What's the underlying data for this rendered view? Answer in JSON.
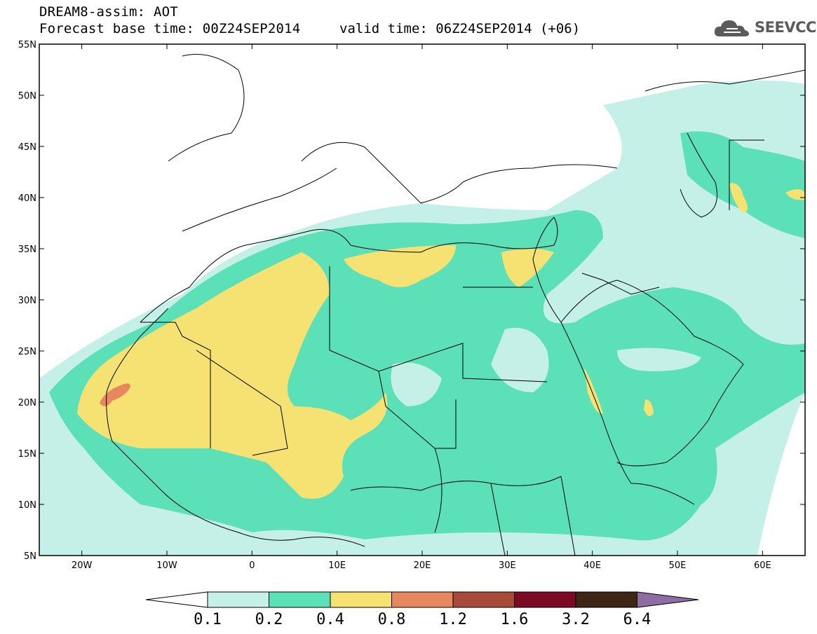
{
  "header": {
    "line1": "DREAM8-assim: AOT",
    "line2": "Forecast base time: 00Z24SEP2014",
    "line3": "valid time: 06Z24SEP2014 (+06)",
    "logo_text": "SEEVCCC",
    "logo_icon": "cloud-icon"
  },
  "map": {
    "lon_range": [
      -25,
      65
    ],
    "lat_range": [
      5,
      55
    ],
    "lat_ticks": [
      {
        "v": 55,
        "label": "55N"
      },
      {
        "v": 50,
        "label": "50N"
      },
      {
        "v": 45,
        "label": "45N"
      },
      {
        "v": 40,
        "label": "40N"
      },
      {
        "v": 35,
        "label": "35N"
      },
      {
        "v": 30,
        "label": "30N"
      },
      {
        "v": 25,
        "label": "25N"
      },
      {
        "v": 20,
        "label": "20N"
      },
      {
        "v": 15,
        "label": "15N"
      },
      {
        "v": 10,
        "label": "10N"
      },
      {
        "v": 5,
        "label": "5N"
      }
    ],
    "lon_ticks": [
      {
        "v": -20,
        "label": "20W"
      },
      {
        "v": -10,
        "label": "10W"
      },
      {
        "v": 0,
        "label": "0"
      },
      {
        "v": 10,
        "label": "10E"
      },
      {
        "v": 20,
        "label": "20E"
      },
      {
        "v": 30,
        "label": "30E"
      },
      {
        "v": 40,
        "label": "40E"
      },
      {
        "v": 50,
        "label": "50E"
      },
      {
        "v": 60,
        "label": "60E"
      }
    ],
    "field_colors": {
      "c1": "#c4f0e8",
      "c2": "#5ce0b8",
      "c3": "#f5e272",
      "c4": "#e6875f",
      "coast": "#000000"
    }
  },
  "colorbar": {
    "colors": [
      "#ffffff",
      "#c4f0e8",
      "#5ce0b8",
      "#f5e272",
      "#e6875f",
      "#a8493a",
      "#7d0a24",
      "#3d2615",
      "#8f6ca3"
    ],
    "labels": [
      "0.1",
      "0.2",
      "0.4",
      "0.8",
      "1.2",
      "1.6",
      "3.2",
      "6.4"
    ]
  }
}
